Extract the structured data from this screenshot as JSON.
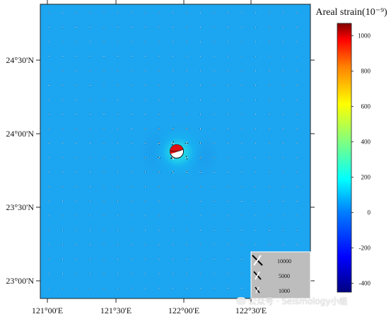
{
  "map": {
    "lon_labels": [
      "121°00'E",
      "121°30'E",
      "122°00'E",
      "122°30'E"
    ],
    "lat_labels": [
      "24°30'N",
      "24°00'N",
      "23°30'N",
      "23°00'N"
    ]
  },
  "colorbar": {
    "title": "Areal strain(10⁻⁹)",
    "range": [
      -450,
      1070
    ],
    "ticks": [
      1000,
      800,
      600,
      400,
      200,
      0,
      -200,
      -400
    ]
  },
  "legend": {
    "scales": [
      "10000",
      "5000",
      "1000"
    ]
  },
  "watermark": {
    "text": "公众号 · Seismology小组"
  },
  "colors": {
    "background_strain": "#1ca5f0",
    "compression": "#000000",
    "extension": "#ffffff",
    "beachball_fill": "#e11010"
  }
}
